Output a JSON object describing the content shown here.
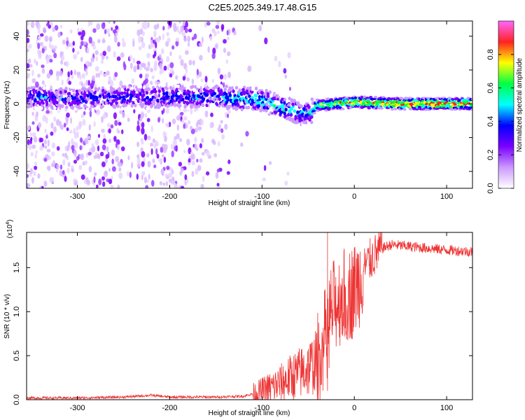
{
  "title": "C2E5.2025.349.17.48.G15",
  "chart_data": [
    {
      "type": "heatmap",
      "xlabel": "Height of straight line (km)",
      "ylabel": "Frequency (Hz)",
      "xlim": [
        -355,
        128
      ],
      "ylim": [
        -50,
        49
      ],
      "xticks": [
        -300,
        -200,
        -100,
        0,
        100
      ],
      "yticks": [
        -40,
        -20,
        0,
        20,
        40
      ],
      "colorbar": {
        "label": "Normalized spectral amplitude",
        "range": [
          0,
          1
        ],
        "ticks": [
          "0.0",
          "0.2",
          "0.4",
          "0.6",
          "0.8"
        ],
        "tick_values": [
          0,
          0.2,
          0.4,
          0.6,
          0.8
        ],
        "colors": [
          "#ffffff",
          "#cc99ff",
          "#7a00ff",
          "#0000ff",
          "#00ffff",
          "#00ff44",
          "#ffff00",
          "#ff2222",
          "#ff66ff"
        ]
      },
      "ridge": {
        "x": [
          -355,
          -300,
          -250,
          -200,
          -150,
          -120,
          -100,
          -80,
          -60,
          -50,
          -45,
          -40,
          -20,
          0,
          50,
          128
        ],
        "frequency": [
          4,
          3,
          4,
          4,
          4,
          3,
          2,
          -2,
          -5,
          -6,
          -3,
          -1,
          0,
          1,
          0,
          0
        ],
        "peak_amplitude": [
          0.45,
          0.45,
          0.45,
          0.45,
          0.5,
          0.55,
          0.6,
          0.6,
          0.6,
          0.55,
          0.6,
          0.75,
          0.85,
          0.9,
          0.95,
          0.95
        ]
      }
    },
    {
      "type": "line",
      "xlabel": "Height of straight line (km)",
      "ylabel": "SNR (10 * v/v)",
      "scale_label": "(x10",
      "scale_exponent": "4",
      "scale_suffix": ")",
      "xlim": [
        -355,
        128
      ],
      "ylim": [
        0,
        1.9
      ],
      "xticks": [
        -300,
        -200,
        -100,
        0,
        100
      ],
      "yticks": [
        0.0,
        0.5,
        1.0,
        1.5
      ],
      "ytick_labels": [
        "0.0",
        "0.5",
        "1.0",
        "1.5"
      ],
      "color": "#ee3333",
      "series": [
        {
          "name": "SNR",
          "x": [
            -355,
            -300,
            -250,
            -220,
            -200,
            -150,
            -120,
            -105,
            -95,
            -80,
            -70,
            -60,
            -50,
            -40,
            -35,
            -30,
            -25,
            -20,
            -15,
            -10,
            -5,
            0,
            5,
            10,
            20,
            30,
            40,
            60,
            80,
            100,
            128
          ],
          "y": [
            0.02,
            0.02,
            0.03,
            0.05,
            0.03,
            0.03,
            0.04,
            0.08,
            0.12,
            0.18,
            0.25,
            0.3,
            0.35,
            0.45,
            0.6,
            0.8,
            1.0,
            1.1,
            1.15,
            1.2,
            1.2,
            1.25,
            1.35,
            1.5,
            1.62,
            1.72,
            1.76,
            1.74,
            1.72,
            1.7,
            1.68
          ]
        }
      ]
    }
  ]
}
